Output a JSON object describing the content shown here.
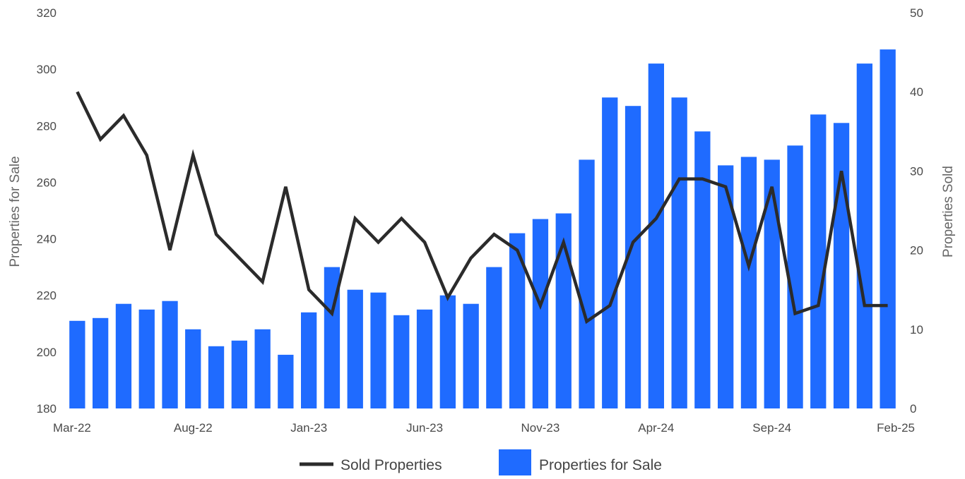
{
  "chart_data": {
    "type": "bar+line",
    "title": "",
    "colors": {
      "bar": "#1f6bff",
      "line": "#2b2b2b"
    },
    "x_tick_labels": [
      "Mar-22",
      "Aug-22",
      "Jan-23",
      "Jun-23",
      "Nov-23",
      "Apr-24",
      "Sep-24",
      "Feb-25"
    ],
    "categories": [
      "Mar-22",
      "Apr-22",
      "May-22",
      "Jun-22",
      "Jul-22",
      "Aug-22",
      "Sep-22",
      "Oct-22",
      "Nov-22",
      "Dec-22",
      "Jan-23",
      "Feb-23",
      "Mar-23",
      "Apr-23",
      "May-23",
      "Jun-23",
      "Jul-23",
      "Aug-23",
      "Sep-23",
      "Oct-23",
      "Nov-23",
      "Dec-23",
      "Jan-24",
      "Feb-24",
      "Mar-24",
      "Apr-24",
      "May-24",
      "Jun-24",
      "Jul-24",
      "Aug-24",
      "Sep-24",
      "Oct-24",
      "Nov-24",
      "Dec-24",
      "Jan-25",
      "Feb-25"
    ],
    "y_left": {
      "label": "Properties for Sale",
      "min": 180,
      "max": 320,
      "ticks": [
        180,
        200,
        220,
        240,
        260,
        280,
        300,
        320
      ]
    },
    "y_right": {
      "label": "Properties Sold",
      "min": 0,
      "max": 50,
      "ticks": [
        0,
        10,
        20,
        30,
        40,
        50
      ]
    },
    "series": [
      {
        "name": "Properties for Sale",
        "type": "bar",
        "axis": "left",
        "values": [
          211,
          212,
          217,
          215,
          218,
          208,
          202,
          204,
          208,
          199,
          214,
          230,
          222,
          221,
          213,
          215,
          220,
          217,
          230,
          242,
          247,
          249,
          268,
          290,
          287,
          302,
          290,
          278,
          266,
          269,
          268,
          273,
          284,
          281,
          302,
          307
        ]
      },
      {
        "name": "Sold Properties",
        "type": "line",
        "axis": "right",
        "values": [
          40,
          34,
          37,
          32,
          20,
          32,
          22,
          19,
          16,
          28,
          15,
          12,
          24,
          21,
          24,
          21,
          14,
          19,
          22,
          20,
          13,
          21,
          11,
          13,
          21,
          24,
          29,
          29,
          28,
          18,
          28,
          12,
          13,
          30,
          13,
          13
        ]
      }
    ],
    "legend": {
      "placement": "bottom",
      "items": [
        {
          "label": "Sold Properties",
          "kind": "line"
        },
        {
          "label": "Properties for Sale",
          "kind": "bar"
        }
      ]
    },
    "grid": false
  }
}
